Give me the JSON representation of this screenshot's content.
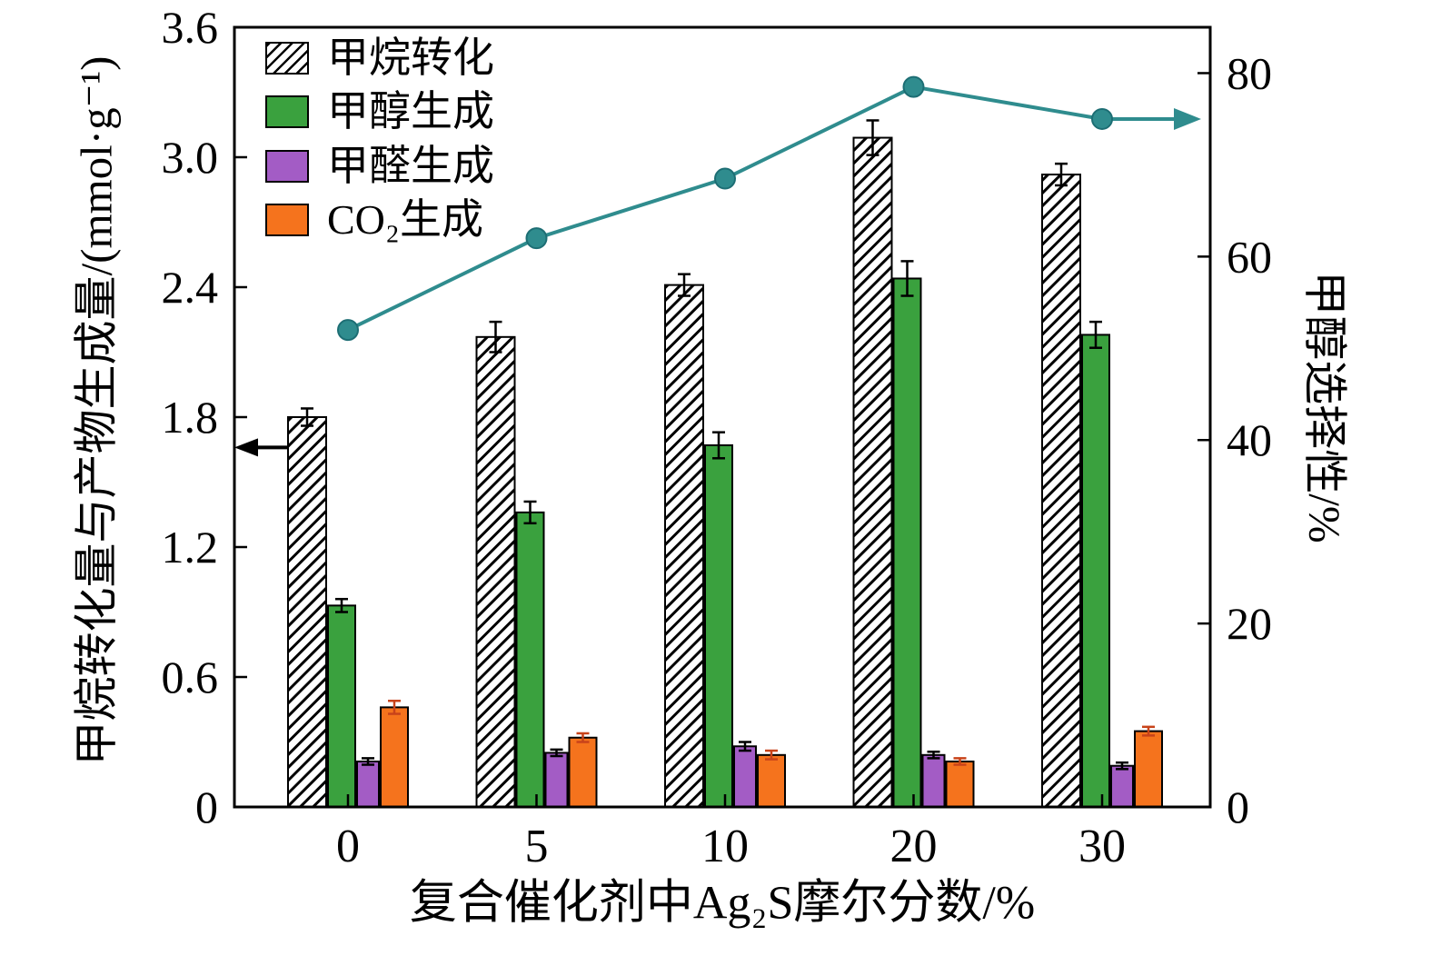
{
  "chart_data": {
    "type": "bar+line",
    "categories": [
      "0",
      "5",
      "10",
      "20",
      "30"
    ],
    "xlabel": "复合催化剂中Ag₂S摩尔分数/%",
    "ylabel_left": "甲烷转化量与产物生成量/(mmol·g⁻¹)",
    "ylabel_right": "甲醇选择性/%",
    "ylim_left": [
      0,
      3.6
    ],
    "yticks_left": [
      "0",
      "0.6",
      "1.2",
      "1.8",
      "2.4",
      "3.0",
      "3.6"
    ],
    "ylim_right": [
      0,
      85
    ],
    "yticks_right": [
      "0",
      "20",
      "40",
      "60",
      "80"
    ],
    "grid": false,
    "legend_position": "upper-left",
    "series": [
      {
        "name": "甲烷转化",
        "hatch": true,
        "color": "#ffffff",
        "values": [
          1.8,
          2.17,
          2.41,
          3.09,
          2.92
        ],
        "errors": [
          0.04,
          0.07,
          0.05,
          0.08,
          0.05
        ]
      },
      {
        "name": "甲醇生成",
        "hatch": false,
        "color": "#3aa13e",
        "values": [
          0.93,
          1.36,
          1.67,
          2.44,
          2.18
        ],
        "errors": [
          0.03,
          0.05,
          0.06,
          0.08,
          0.06
        ]
      },
      {
        "name": "甲醛生成",
        "hatch": false,
        "color": "#a35cc5",
        "values": [
          0.21,
          0.25,
          0.28,
          0.24,
          0.19
        ],
        "errors": [
          0.015,
          0.015,
          0.02,
          0.015,
          0.015
        ]
      },
      {
        "name": "CO₂生成",
        "hatch": false,
        "color": "#f5731d",
        "error_color": "#c8431a",
        "values": [
          0.46,
          0.32,
          0.24,
          0.21,
          0.35
        ],
        "errors": [
          0.03,
          0.02,
          0.02,
          0.015,
          0.02
        ]
      }
    ],
    "line": {
      "name": "甲醇选择性",
      "color": "#2f8c8e",
      "marker_edge": "#1d6e74",
      "values": [
        52,
        62,
        68.5,
        78.5,
        75
      ]
    }
  }
}
